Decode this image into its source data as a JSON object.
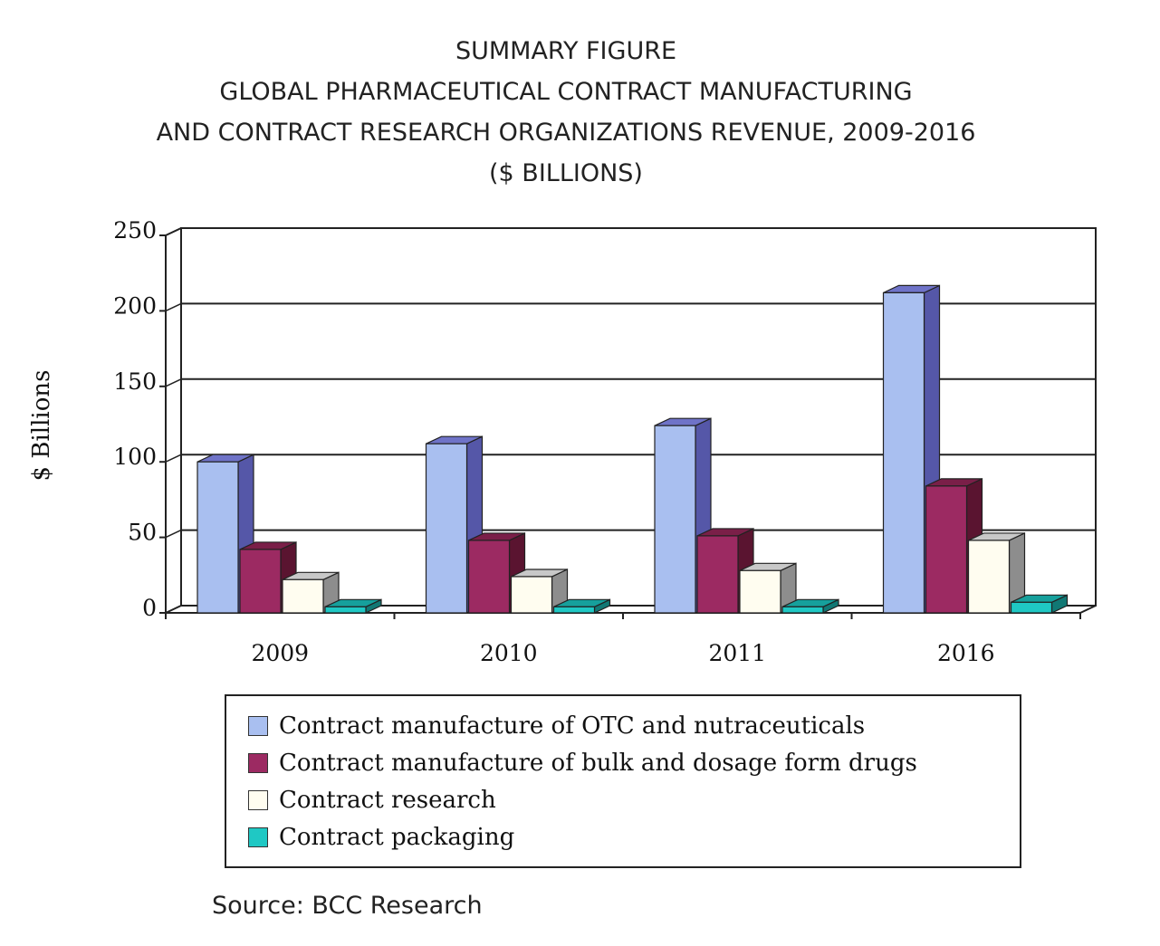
{
  "chart_data": {
    "type": "bar",
    "title_lines": [
      "SUMMARY FIGURE",
      "GLOBAL PHARMACEUTICAL CONTRACT MANUFACTURING",
      "AND CONTRACT RESEARCH ORGANIZATIONS  REVENUE, 2009-2016",
      "($ BILLIONS)"
    ],
    "ylabel": "$ Billions",
    "xlabel": "",
    "ylim": [
      0,
      250
    ],
    "yticks": [
      "0",
      "50",
      "100",
      "150",
      "200",
      "250"
    ],
    "categories": [
      "2009",
      "2010",
      "2011",
      "2016"
    ],
    "series": [
      {
        "name": "Contract manufacture of OTC and nutraceuticals",
        "values": [
          100,
          112,
          124,
          212
        ]
      },
      {
        "name": "Contract manufacture of bulk and dosage form drugs",
        "values": [
          42,
          48,
          51,
          84
        ]
      },
      {
        "name": "Contract research",
        "values": [
          22,
          24,
          28,
          48
        ]
      },
      {
        "name": "Contract packaging",
        "values": [
          4,
          4,
          4,
          7
        ]
      }
    ],
    "grid": true,
    "legend_position": "bottom",
    "style": "3d",
    "colors": {
      "series": [
        "#a9bff0",
        "#9c2a62",
        "#fffdf0",
        "#1fc8c4"
      ],
      "series_side": [
        "#5557a8",
        "#5a1430",
        "#8d8d8d",
        "#117874"
      ],
      "series_top": [
        "#6f73c8",
        "#7a1f48",
        "#c8c8c8",
        "#16a09c"
      ]
    }
  },
  "source": "Source: BCC Research"
}
